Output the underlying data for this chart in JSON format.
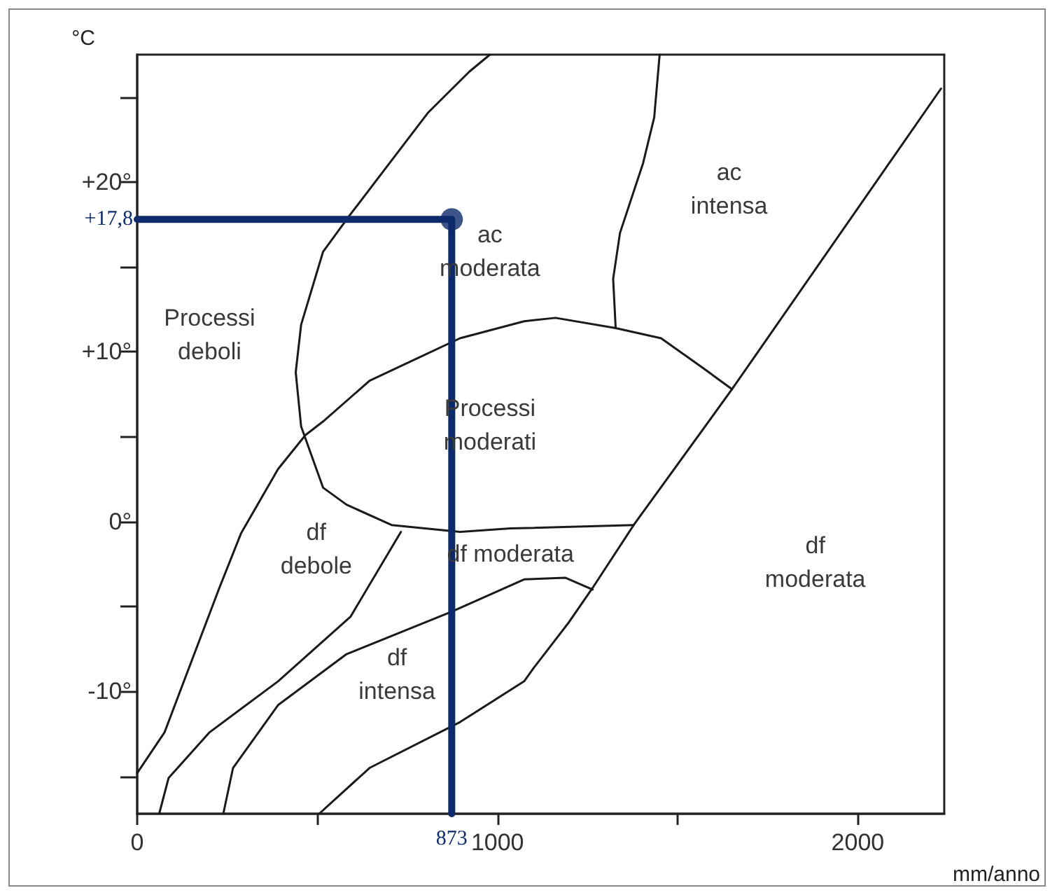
{
  "chart_data": {
    "type": "line",
    "xlabel": "mm/anno",
    "ylabel": "°C",
    "xlim": [
      0,
      2240
    ],
    "ylim": [
      -17.2,
      27.5
    ],
    "xticks": [
      0,
      {
        "value": 500,
        "label": null
      },
      1000,
      {
        "value": 1500,
        "label": null
      },
      2000
    ],
    "yticks": [
      {
        "value": -15,
        "label": null
      },
      {
        "value": -10,
        "label": "-10°"
      },
      {
        "value": -5,
        "label": null
      },
      {
        "value": 0,
        "label": "0°"
      },
      {
        "value": 5,
        "label": null
      },
      {
        "value": 10,
        "label": "+10°"
      },
      {
        "value": 15,
        "label": null
      },
      {
        "value": 20,
        "label": "+20°"
      },
      {
        "value": 25,
        "label": null
      }
    ],
    "grid": false,
    "marker": "none",
    "line_style": "solid",
    "series": [
      {
        "color": "#1a1a1a",
        "x": [
          979,
          922,
          808,
          592,
          516,
          455,
          440,
          455,
          516,
          581,
          706,
          896,
          1036,
          1378
        ],
        "values": [
          27.5,
          26.5,
          24.1,
          18.1,
          15.9,
          11.6,
          8.8,
          5.6,
          2.0,
          1.0,
          -0.2,
          -0.6,
          -0.4,
          -0.2
        ]
      },
      {
        "color": "#1a1a1a",
        "x": [
          0,
          76,
          228,
          288,
          391,
          467,
          516,
          645,
          896,
          1074,
          1161,
          1328,
          1454,
          1567,
          1651
        ],
        "values": [
          -14.8,
          -12.4,
          -3.9,
          -0.7,
          3.1,
          5.1,
          5.9,
          8.3,
          10.8,
          11.8,
          12.0,
          11.4,
          10.8,
          9.1,
          7.8
        ]
      },
      {
        "color": "#1a1a1a",
        "x": [
          505,
          645,
          896,
          1074,
          1101,
          1199,
          1264,
          1378,
          1651,
          2231
        ],
        "values": [
          -17.2,
          -14.5,
          -11.8,
          -9.4,
          -8.6,
          -5.9,
          -3.9,
          -0.2,
          7.8,
          25.5
        ]
      },
      {
        "color": "#1a1a1a",
        "x": [
          239,
          266,
          391,
          581,
          873,
          1074,
          1188,
          1264
        ],
        "values": [
          -17.2,
          -14.5,
          -10.8,
          -7.8,
          -5.3,
          -3.4,
          -3.3,
          -4.0
        ]
      },
      {
        "color": "#1a1a1a",
        "x": [
          61,
          87,
          201,
          391,
          592,
          732
        ],
        "values": [
          -17.2,
          -15.1,
          -12.4,
          -9.4,
          -5.6,
          -0.6
        ]
      },
      {
        "color": "#1a1a1a",
        "x": [
          1450,
          1435,
          1404,
          1340,
          1321,
          1328
        ],
        "values": [
          27.5,
          23.8,
          21.1,
          17.0,
          14.3,
          11.4
        ]
      },
      {
        "color": "#0d2a6b",
        "x": [
          0,
          873,
          873
        ],
        "values": [
          17.8,
          17.8,
          -17.2
        ]
      },
      {
        "type": "scatter",
        "marker": "circle",
        "color": "#0d2a6b",
        "x": [
          873
        ],
        "values": [
          17.8
        ]
      }
    ],
    "annotations": [
      {
        "text": "+17,8",
        "x": 0,
        "y": 17.8
      },
      {
        "text": "873",
        "x": 873,
        "y": -17.2
      },
      "Processi\ndeboli",
      "ac\nmoderata",
      "ac\nintensa",
      "Processi\nmoderati",
      "df\ndebole",
      "df moderata",
      "df\nmoderata",
      "df\nintensa"
    ]
  }
}
